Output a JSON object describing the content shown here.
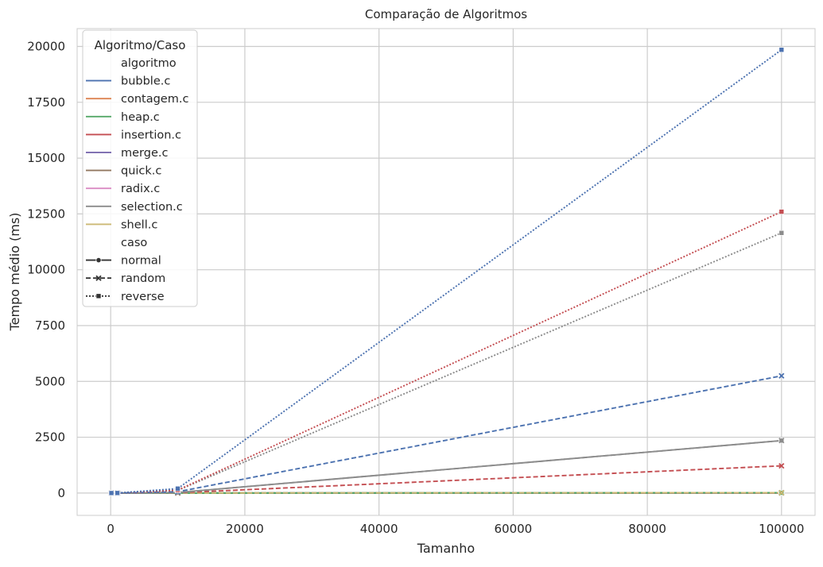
{
  "chart_data": {
    "type": "line",
    "title": "Comparação de Algoritmos",
    "xlabel": "Tamanho",
    "ylabel": "Tempo médio (ms)",
    "xlim": [
      -5000,
      105000
    ],
    "ylim": [
      -1000,
      20800
    ],
    "xticks": [
      0,
      20000,
      40000,
      60000,
      80000,
      100000
    ],
    "yticks": [
      0,
      2500,
      5000,
      7500,
      10000,
      12500,
      15000,
      17500,
      20000
    ],
    "grid": true,
    "x": [
      100,
      1000,
      10000,
      100000
    ],
    "legend": {
      "title": "Algoritmo/Caso",
      "placement": "top-left",
      "hue_heading": "algoritmo",
      "style_heading": "caso",
      "algorithms": [
        {
          "name": "bubble.c",
          "color": "#4c72b0"
        },
        {
          "name": "contagem.c",
          "color": "#dd8452"
        },
        {
          "name": "heap.c",
          "color": "#55a868"
        },
        {
          "name": "insertion.c",
          "color": "#c44e52"
        },
        {
          "name": "merge.c",
          "color": "#8172b3"
        },
        {
          "name": "quick.c",
          "color": "#937860"
        },
        {
          "name": "radix.c",
          "color": "#da8bc3"
        },
        {
          "name": "selection.c",
          "color": "#8c8c8c"
        },
        {
          "name": "shell.c",
          "color": "#ccb974"
        }
      ],
      "cases": [
        {
          "name": "normal",
          "dash": "solid",
          "marker": "circle"
        },
        {
          "name": "random",
          "dash": "dashed",
          "marker": "x"
        },
        {
          "name": "reverse",
          "dash": "dotted",
          "marker": "square"
        }
      ]
    },
    "series": [
      {
        "algorithm": "bubble.c",
        "case": "normal",
        "values": [
          0,
          0,
          0,
          0
        ]
      },
      {
        "algorithm": "bubble.c",
        "case": "random",
        "values": [
          0,
          1,
          60,
          5250
        ]
      },
      {
        "algorithm": "bubble.c",
        "case": "reverse",
        "values": [
          0,
          2,
          200,
          19850
        ]
      },
      {
        "algorithm": "contagem.c",
        "case": "normal",
        "values": [
          0,
          0,
          0,
          1
        ]
      },
      {
        "algorithm": "contagem.c",
        "case": "random",
        "values": [
          0,
          0,
          0,
          1
        ]
      },
      {
        "algorithm": "contagem.c",
        "case": "reverse",
        "values": [
          0,
          0,
          0,
          1
        ]
      },
      {
        "algorithm": "heap.c",
        "case": "normal",
        "values": [
          0,
          0,
          1,
          12
        ]
      },
      {
        "algorithm": "heap.c",
        "case": "random",
        "values": [
          0,
          0,
          1,
          14
        ]
      },
      {
        "algorithm": "heap.c",
        "case": "reverse",
        "values": [
          0,
          0,
          1,
          12
        ]
      },
      {
        "algorithm": "insertion.c",
        "case": "normal",
        "values": [
          0,
          0,
          0,
          0
        ]
      },
      {
        "algorithm": "insertion.c",
        "case": "random",
        "values": [
          0,
          1,
          15,
          1220
        ]
      },
      {
        "algorithm": "insertion.c",
        "case": "reverse",
        "values": [
          0,
          2,
          130,
          12600
        ]
      },
      {
        "algorithm": "merge.c",
        "case": "normal",
        "values": [
          0,
          0,
          1,
          10
        ]
      },
      {
        "algorithm": "merge.c",
        "case": "random",
        "values": [
          0,
          0,
          1,
          12
        ]
      },
      {
        "algorithm": "merge.c",
        "case": "reverse",
        "values": [
          0,
          0,
          1,
          10
        ]
      },
      {
        "algorithm": "quick.c",
        "case": "normal",
        "values": [
          0,
          0,
          1,
          8
        ]
      },
      {
        "algorithm": "quick.c",
        "case": "random",
        "values": [
          0,
          0,
          1,
          9
        ]
      },
      {
        "algorithm": "quick.c",
        "case": "reverse",
        "values": [
          0,
          0,
          1,
          8
        ]
      },
      {
        "algorithm": "radix.c",
        "case": "normal",
        "values": [
          0,
          0,
          0,
          4
        ]
      },
      {
        "algorithm": "radix.c",
        "case": "random",
        "values": [
          0,
          0,
          0,
          4
        ]
      },
      {
        "algorithm": "radix.c",
        "case": "reverse",
        "values": [
          0,
          0,
          0,
          4
        ]
      },
      {
        "algorithm": "selection.c",
        "case": "normal",
        "values": [
          0,
          1,
          25,
          2350
        ]
      },
      {
        "algorithm": "selection.c",
        "case": "random",
        "values": [
          0,
          1,
          25,
          2350
        ]
      },
      {
        "algorithm": "selection.c",
        "case": "reverse",
        "values": [
          0,
          2,
          120,
          11650
        ]
      },
      {
        "algorithm": "shell.c",
        "case": "normal",
        "values": [
          0,
          0,
          1,
          8
        ]
      },
      {
        "algorithm": "shell.c",
        "case": "random",
        "values": [
          0,
          0,
          2,
          16
        ]
      },
      {
        "algorithm": "shell.c",
        "case": "reverse",
        "values": [
          0,
          0,
          1,
          10
        ]
      }
    ]
  }
}
